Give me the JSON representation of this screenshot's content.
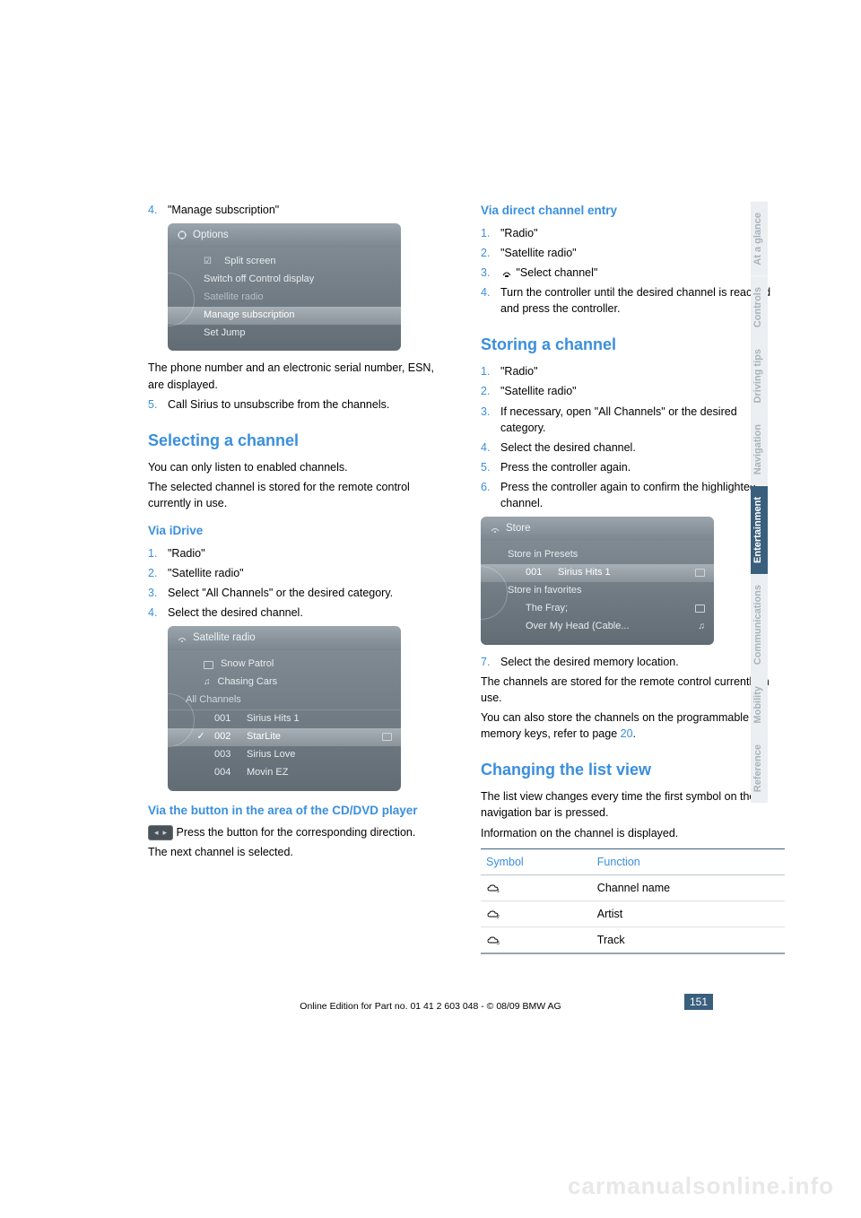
{
  "watermark": "carmanualsonline.info",
  "left": {
    "step4": {
      "num": "4.",
      "text": "\"Manage subscription\""
    },
    "options_shot": {
      "title": "Options",
      "rows": [
        {
          "label": "Split screen",
          "check": true
        },
        {
          "label": "Switch off Control display"
        },
        {
          "label": "Satellite radio",
          "dim": true
        },
        {
          "label": "Manage subscription",
          "hl": true
        },
        {
          "label": "Set Jump"
        }
      ]
    },
    "after_options": "The phone number and an electronic serial number, ESN, are displayed.",
    "step5": {
      "num": "5.",
      "text": "Call Sirius to unsubscribe from the channels."
    },
    "h_select": "Selecting a channel",
    "p_sel1": "You can only listen to enabled channels.",
    "p_sel2": "The selected channel is stored for the remote control currently in use.",
    "h_idrive": "Via iDrive",
    "idrive_steps": [
      {
        "num": "1.",
        "text": "\"Radio\""
      },
      {
        "num": "2.",
        "text": "\"Satellite radio\""
      },
      {
        "num": "3.",
        "text": "Select \"All Channels\" or the desired category."
      },
      {
        "num": "4.",
        "text": "Select the desired channel."
      }
    ],
    "sat_shot": {
      "title": "Satellite radio",
      "top": [
        {
          "icon": "preset",
          "label": "Snow Patrol"
        },
        {
          "icon": "note",
          "label": "Chasing Cars"
        }
      ],
      "divider": "All Channels",
      "rows": [
        {
          "num": "001",
          "label": "Sirius Hits 1"
        },
        {
          "num": "002",
          "label": "StarLite",
          "hl": true,
          "chk": true,
          "preset": true
        },
        {
          "num": "003",
          "label": "Sirius Love"
        },
        {
          "num": "004",
          "label": "Movin EZ"
        }
      ]
    },
    "h_cd": "Via the button in the area of the CD/DVD player",
    "cd_text": " Press the button for the corresponding direction.",
    "cd_next": "The next channel is selected."
  },
  "right": {
    "h_direct": "Via direct channel entry",
    "direct_steps": [
      {
        "num": "1.",
        "text": "\"Radio\""
      },
      {
        "num": "2.",
        "text": "\"Satellite radio\""
      },
      {
        "num": "3.",
        "text": " \"Select channel\"",
        "icon": true
      },
      {
        "num": "4.",
        "text": "Turn the controller until the desired channel is reached and press the controller."
      }
    ],
    "h_store": "Storing a channel",
    "store_steps": [
      {
        "num": "1.",
        "text": "\"Radio\""
      },
      {
        "num": "2.",
        "text": "\"Satellite radio\""
      },
      {
        "num": "3.",
        "text": "If necessary, open \"All Channels\" or the desired category."
      },
      {
        "num": "4.",
        "text": "Select the desired channel."
      },
      {
        "num": "5.",
        "text": "Press the controller again."
      },
      {
        "num": "6.",
        "text": "Press the controller again to confirm the highlighted channel."
      }
    ],
    "store_shot": {
      "title": "Store",
      "rows": [
        {
          "label": "Store in Presets"
        },
        {
          "indent": true,
          "num": "001",
          "label": "Sirius Hits 1",
          "hl": true,
          "preset": true
        },
        {
          "label": "Store in favorites"
        },
        {
          "indent": true,
          "label": "The Fray;",
          "preset": true
        },
        {
          "indent": true,
          "label": "Over My Head (Cable...",
          "note": true
        }
      ]
    },
    "step7": {
      "num": "7.",
      "text": "Select the desired memory location."
    },
    "p_store1": "The channels are stored for the remote control currently in use.",
    "p_store2a": "You can also store the channels on the programmable memory keys, refer to page ",
    "p_store2b": "20",
    "p_store2c": ".",
    "h_list": "Changing the list view",
    "p_list1": "The list view changes every time the first symbol on the navigation bar is pressed.",
    "p_list2": "Information on the channel is displayed.",
    "table": {
      "h1": "Symbol",
      "h2": "Function",
      "rows": [
        "Channel name",
        "Artist",
        "Track"
      ]
    }
  },
  "tabs": [
    "At a glance",
    "Controls",
    "Driving tips",
    "Navigation",
    "Entertainment",
    "Communications",
    "Mobility",
    "Reference"
  ],
  "active_tab": 4,
  "page_number": "151",
  "footer_line": "Online Edition for Part no. 01 41 2 603 048 - © 08/09 BMW AG"
}
